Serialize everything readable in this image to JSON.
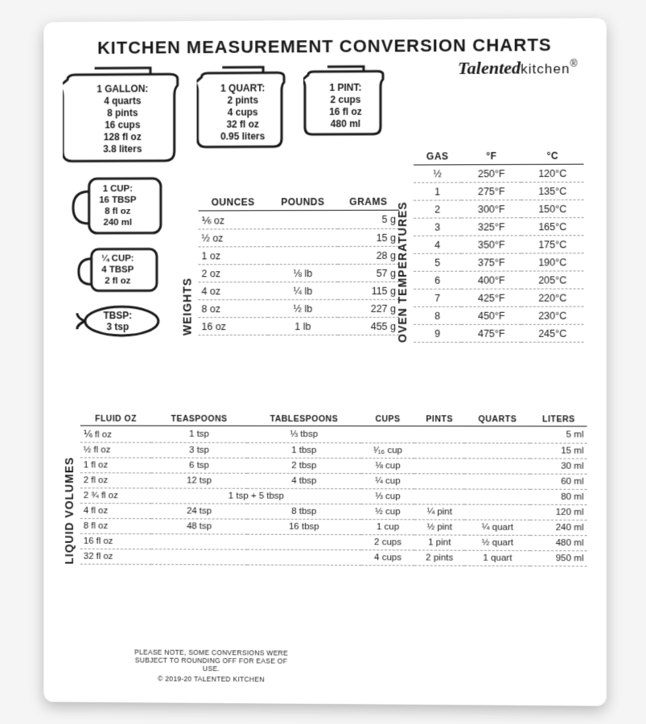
{
  "title": "KITCHEN MEASUREMENT CONVERSION CHARTS",
  "brand_script": "Talented",
  "brand_plain": "kitchen",
  "brand_reg": "®",
  "colors": {
    "text": "#1a1a1a",
    "bg": "#ffffff",
    "dash": "#999999"
  },
  "jars": {
    "gallon": {
      "head": "1 GALLON:",
      "lines": [
        "4 quarts",
        "8 pints",
        "16 cups",
        "128 fl oz",
        "3.8 liters"
      ]
    },
    "quart": {
      "head": "1 QUART:",
      "lines": [
        "2 pints",
        "4 cups",
        "32 fl oz",
        "0.95 liters"
      ]
    },
    "pint": {
      "head": "1 PINT:",
      "lines": [
        "2 cups",
        "16 fl oz",
        "480 ml"
      ]
    }
  },
  "cups": {
    "one": {
      "head": "1 CUP:",
      "lines": [
        "16 TBSP",
        "8 fl oz",
        "240 ml"
      ]
    },
    "quarter": {
      "head": "¼ CUP:",
      "lines": [
        "4 TBSP",
        "2 fl oz"
      ]
    },
    "tbsp": {
      "head": "TBSP:",
      "lines": [
        "3 tsp"
      ]
    }
  },
  "weights": {
    "label": "WEIGHTS",
    "columns": [
      "OUNCES",
      "POUNDS",
      "GRAMS"
    ],
    "rows": [
      [
        "⅙ oz",
        "",
        "5 g"
      ],
      [
        "½ oz",
        "",
        "15 g"
      ],
      [
        "1 oz",
        "",
        "28 g"
      ],
      [
        "2 oz",
        "⅛ lb",
        "57 g"
      ],
      [
        "4 oz",
        "¼ lb",
        "115 g"
      ],
      [
        "8 oz",
        "½ lb",
        "227 g"
      ],
      [
        "16 oz",
        "1 lb",
        "455 g"
      ]
    ]
  },
  "oven": {
    "label": "OVEN TEMPERATURES",
    "columns": [
      "GAS",
      "°F",
      "°C"
    ],
    "rows": [
      [
        "½",
        "250°F",
        "120°C"
      ],
      [
        "1",
        "275°F",
        "135°C"
      ],
      [
        "2",
        "300°F",
        "150°C"
      ],
      [
        "3",
        "325°F",
        "165°C"
      ],
      [
        "4",
        "350°F",
        "175°C"
      ],
      [
        "5",
        "375°F",
        "190°C"
      ],
      [
        "6",
        "400°F",
        "205°C"
      ],
      [
        "7",
        "425°F",
        "220°C"
      ],
      [
        "8",
        "450°F",
        "230°C"
      ],
      [
        "9",
        "475°F",
        "245°C"
      ]
    ]
  },
  "liquid": {
    "label": "LIQUID VOLUMES",
    "columns": [
      "FLUID OZ",
      "TEASPOONS",
      "TABLESPOONS",
      "CUPS",
      "PINTS",
      "QUARTS",
      "LITERS"
    ],
    "rows": [
      [
        "⅙ fl oz",
        "1 tsp",
        "⅓ tbsp",
        "",
        "",
        "",
        "5 ml"
      ],
      [
        "½ fl oz",
        "3 tsp",
        "1 tbsp",
        "¹⁄₁₆ cup",
        "",
        "",
        "15 ml"
      ],
      [
        "1 fl oz",
        "6 tsp",
        "2 tbsp",
        "⅛ cup",
        "",
        "",
        "30 ml"
      ],
      [
        "2 fl oz",
        "12 tsp",
        "4 tbsp",
        "¼ cup",
        "",
        "",
        "60 ml"
      ],
      [
        "2 ¾ fl oz",
        "1 tsp + 5 tbsp",
        "",
        "⅓ cup",
        "",
        "",
        "80 ml"
      ],
      [
        "4 fl oz",
        "24 tsp",
        "8 tbsp",
        "½ cup",
        "¼ pint",
        "",
        "120 ml"
      ],
      [
        "8 fl oz",
        "48 tsp",
        "16 tbsp",
        "1 cup",
        "½ pint",
        "¼ quart",
        "240 ml"
      ],
      [
        "16 fl oz",
        "",
        "",
        "2 cups",
        "1 pint",
        "½ quart",
        "480 ml"
      ],
      [
        "32 fl oz",
        "",
        "",
        "4 cups",
        "2 pints",
        "1 quart",
        "950 ml"
      ]
    ]
  },
  "note": "PLEASE NOTE, SOME CONVERSIONS WERE SUBJECT TO ROUNDING OFF FOR EASE OF USE.",
  "copyright": "© 2019-20 TALENTED KITCHEN"
}
